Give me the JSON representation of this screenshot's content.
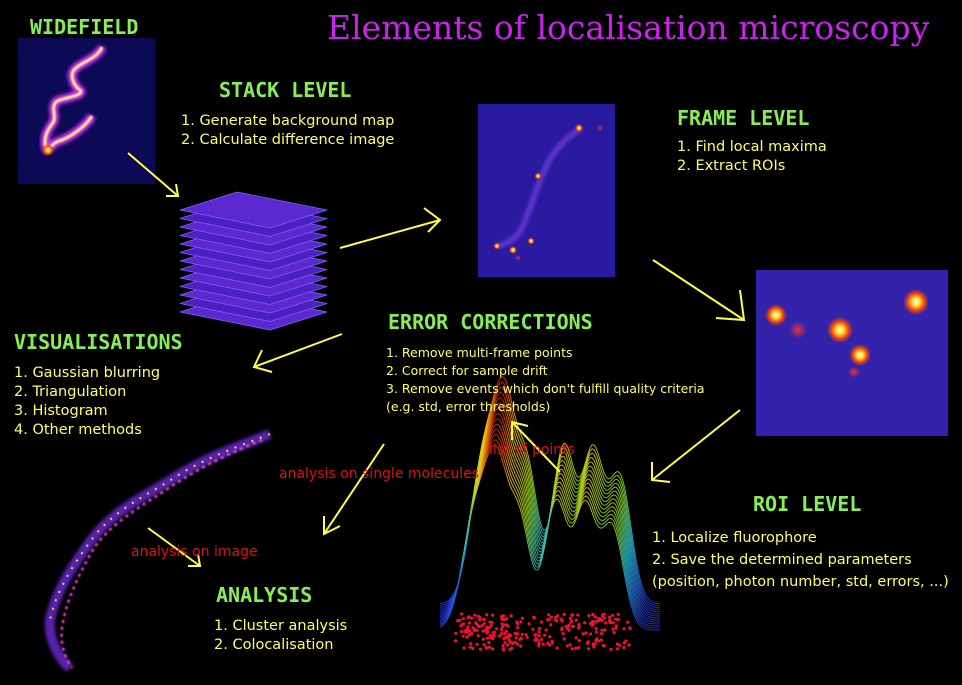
{
  "title": "Elements of localisation microscopy",
  "widefield": {
    "heading": "WIDEFIELD"
  },
  "stack_level": {
    "heading": "STACK LEVEL",
    "steps": [
      "1. Generate background map",
      "2. Calculate difference image"
    ]
  },
  "frame_level": {
    "heading": "FRAME LEVEL",
    "steps": [
      "1. Find local maxima",
      "2. Extract ROIs"
    ]
  },
  "error_corrections": {
    "heading": "ERROR CORRECTIONS",
    "steps": [
      "1. Remove multi-frame points",
      "2. Correct for sample drift",
      "3. Remove events which don't fulfill quality criteria (e.g. std, error thresholds)"
    ]
  },
  "visualisations": {
    "heading": "VISUALISATIONS",
    "steps": [
      "1. Gaussian blurring",
      "2. Triangulation",
      "3. Histogram",
      "4. Other methods"
    ]
  },
  "roi_level": {
    "heading": "ROI LEVEL",
    "steps": [
      "1. Localize fluorophore",
      "2. Save the determined parameters",
      "(position, photon number, std, errors, ...)"
    ]
  },
  "analysis": {
    "heading": "ANALYSIS",
    "steps": [
      "1. Cluster analysis",
      "2. Colocalisation"
    ]
  },
  "edge_labels": {
    "list_of_points": "list of points",
    "analysis_single_molecules": "analysis on single molecules",
    "analysis_on_image": "analysis on image"
  },
  "colors": {
    "title": "#cc22ee",
    "heading": "#88ee55",
    "list_text": "#ffff66",
    "arrow": "#ffff44",
    "edge_label": "#dd1111",
    "frame_background": "#2a1aa0"
  }
}
